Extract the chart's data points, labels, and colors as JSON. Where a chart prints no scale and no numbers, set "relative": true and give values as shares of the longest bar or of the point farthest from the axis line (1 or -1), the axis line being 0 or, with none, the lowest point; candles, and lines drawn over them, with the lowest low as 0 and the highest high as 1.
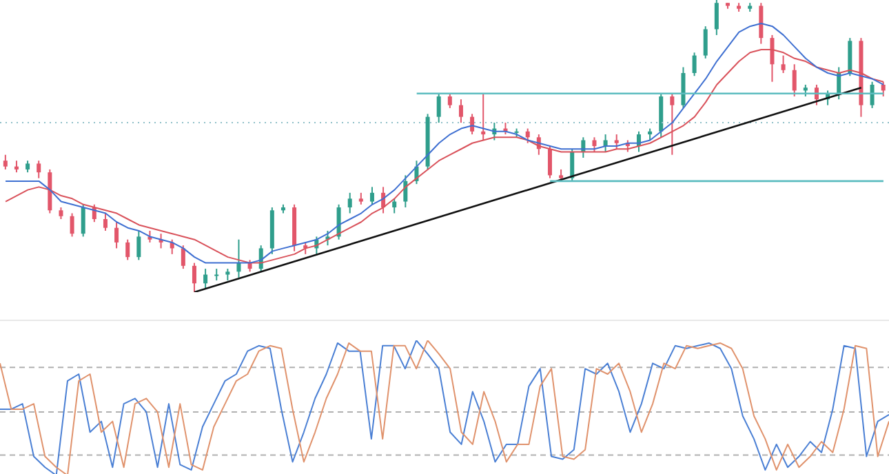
{
  "chart_data": [
    {
      "type": "candlestick",
      "relative": true,
      "tick_labels": false,
      "categories": [
        null,
        null,
        null,
        null,
        null,
        null,
        null,
        null,
        null,
        null,
        null,
        null,
        null,
        null,
        null,
        null,
        null,
        null,
        null,
        null,
        null,
        null,
        null,
        null,
        null,
        null,
        null,
        null,
        null,
        null,
        null,
        null,
        null,
        null,
        null,
        null,
        null,
        null,
        null,
        null,
        null,
        null,
        null,
        null,
        null,
        null,
        null,
        null,
        null,
        null,
        null,
        null,
        null,
        null,
        null,
        null,
        null,
        null,
        null,
        null,
        null,
        null,
        null,
        null,
        null,
        null,
        null,
        null,
        null,
        null,
        null,
        null,
        null,
        null,
        null,
        null,
        null,
        null,
        null,
        null
      ],
      "ohlc": [
        [
          0.45,
          0.47,
          0.42,
          0.43
        ],
        [
          0.43,
          0.45,
          0.41,
          0.42
        ],
        [
          0.42,
          0.45,
          0.41,
          0.44
        ],
        [
          0.44,
          0.45,
          0.39,
          0.41
        ],
        [
          0.41,
          0.42,
          0.27,
          0.28
        ],
        [
          0.28,
          0.29,
          0.25,
          0.26
        ],
        [
          0.26,
          0.27,
          0.19,
          0.2
        ],
        [
          0.2,
          0.3,
          0.19,
          0.29
        ],
        [
          0.29,
          0.3,
          0.24,
          0.25
        ],
        [
          0.25,
          0.27,
          0.21,
          0.22
        ],
        [
          0.22,
          0.24,
          0.15,
          0.17
        ],
        [
          0.17,
          0.18,
          0.11,
          0.12
        ],
        [
          0.12,
          0.21,
          0.11,
          0.19
        ],
        [
          0.19,
          0.21,
          0.17,
          0.18
        ],
        [
          0.18,
          0.2,
          0.15,
          0.17
        ],
        [
          0.17,
          0.18,
          0.13,
          0.15
        ],
        [
          0.15,
          0.16,
          0.08,
          0.09
        ],
        [
          0.09,
          0.1,
          0,
          0.03
        ],
        [
          0.03,
          0.08,
          0.01,
          0.06
        ],
        [
          0.06,
          0.08,
          0.04,
          0.06
        ],
        [
          0.06,
          0.08,
          0.04,
          0.07
        ],
        [
          0.07,
          0.18,
          0.05,
          0.1
        ],
        [
          0.1,
          0.11,
          0.07,
          0.08
        ],
        [
          0.08,
          0.16,
          0.07,
          0.15
        ],
        [
          0.15,
          0.29,
          0.13,
          0.28
        ],
        [
          0.28,
          0.3,
          0.27,
          0.29
        ],
        [
          0.29,
          0.3,
          0.14,
          0.16
        ],
        [
          0.16,
          0.17,
          0.13,
          0.15
        ],
        [
          0.15,
          0.19,
          0.13,
          0.18
        ],
        [
          0.18,
          0.21,
          0.16,
          0.19
        ],
        [
          0.19,
          0.3,
          0.18,
          0.29
        ],
        [
          0.29,
          0.34,
          0.27,
          0.32
        ],
        [
          0.32,
          0.34,
          0.3,
          0.31
        ],
        [
          0.31,
          0.36,
          0.3,
          0.34
        ],
        [
          0.34,
          0.36,
          0.27,
          0.29
        ],
        [
          0.29,
          0.32,
          0.27,
          0.31
        ],
        [
          0.31,
          0.4,
          0.29,
          0.38
        ],
        [
          0.38,
          0.45,
          0.37,
          0.43
        ],
        [
          0.43,
          0.61,
          0.42,
          0.6
        ],
        [
          0.6,
          0.68,
          0.58,
          0.67
        ],
        [
          0.67,
          0.68,
          0.63,
          0.64
        ],
        [
          0.64,
          0.66,
          0.58,
          0.6
        ],
        [
          0.6,
          0.61,
          0.54,
          0.55
        ],
        [
          0.55,
          0.68,
          0.52,
          0.54
        ],
        [
          0.54,
          0.58,
          0.52,
          0.56
        ],
        [
          0.56,
          0.58,
          0.54,
          0.55
        ],
        [
          0.55,
          0.56,
          0.53,
          0.55
        ],
        [
          0.55,
          0.56,
          0.51,
          0.53
        ],
        [
          0.53,
          0.54,
          0.47,
          0.49
        ],
        [
          0.49,
          0.5,
          0.39,
          0.4
        ],
        [
          0.4,
          0.42,
          0.38,
          0.39
        ],
        [
          0.39,
          0.49,
          0.38,
          0.48
        ],
        [
          0.48,
          0.53,
          0.46,
          0.52
        ],
        [
          0.52,
          0.53,
          0.48,
          0.5
        ],
        [
          0.5,
          0.54,
          0.48,
          0.52
        ],
        [
          0.52,
          0.54,
          0.49,
          0.51
        ],
        [
          0.51,
          0.52,
          0.48,
          0.5
        ],
        [
          0.5,
          0.55,
          0.48,
          0.54
        ],
        [
          0.54,
          0.56,
          0.52,
          0.55
        ],
        [
          0.55,
          0.68,
          0.53,
          0.67
        ],
        [
          0.67,
          0.68,
          0.47,
          0.64
        ],
        [
          0.64,
          0.77,
          0.63,
          0.75
        ],
        [
          0.75,
          0.82,
          0.74,
          0.81
        ],
        [
          0.81,
          0.91,
          0.8,
          0.9
        ],
        [
          0.9,
          1,
          0.88,
          0.99
        ],
        [
          0.99,
          0.99,
          0.97,
          0.98
        ],
        [
          0.98,
          0.99,
          0.96,
          0.97
        ],
        [
          0.97,
          0.99,
          0.96,
          0.98
        ],
        [
          0.98,
          0.99,
          0.85,
          0.87
        ],
        [
          0.87,
          0.88,
          0.72,
          0.78
        ],
        [
          0.78,
          0.81,
          0.75,
          0.76
        ],
        [
          0.76,
          0.78,
          0.67,
          0.69
        ],
        [
          0.69,
          0.71,
          0.67,
          0.7
        ],
        [
          0.7,
          0.71,
          0.64,
          0.66
        ],
        [
          0.66,
          0.69,
          0.64,
          0.68
        ],
        [
          0.68,
          0.77,
          0.66,
          0.75
        ],
        [
          0.75,
          0.87,
          0.74,
          0.86
        ],
        [
          0.86,
          0.87,
          0.6,
          0.64
        ],
        [
          0.64,
          0.72,
          0.63,
          0.71
        ],
        [
          0.71,
          0.72,
          0.67,
          0.69
        ]
      ],
      "colors": [
        "#e2566a",
        "#e2566a",
        "#2f9e8c",
        "#e2566a",
        "#e2566a",
        "#e2566a",
        "#e2566a",
        "#2f9e8c",
        "#e2566a",
        "#e2566a",
        "#e2566a",
        "#e2566a",
        "#2f9e8c",
        "#e2566a",
        "#e2566a",
        "#e2566a",
        "#e2566a",
        "#e2566a",
        "#2f9e8c",
        "#2f9e8c",
        "#2f9e8c",
        "#2f9e8c",
        "#e2566a",
        "#2f9e8c",
        "#2f9e8c",
        "#2f9e8c",
        "#e2566a",
        "#e2566a",
        "#2f9e8c",
        "#2f9e8c",
        "#2f9e8c",
        "#2f9e8c",
        "#e2566a",
        "#2f9e8c",
        "#e2566a",
        "#2f9e8c",
        "#2f9e8c",
        "#2f9e8c",
        "#2f9e8c",
        "#2f9e8c",
        "#e2566a",
        "#e2566a",
        "#e2566a",
        "#e2566a",
        "#2f9e8c",
        "#e2566a",
        "#2f9e8c",
        "#e2566a",
        "#e2566a",
        "#e2566a",
        "#e2566a",
        "#2f9e8c",
        "#2f9e8c",
        "#e2566a",
        "#2f9e8c",
        "#e2566a",
        "#e2566a",
        "#2f9e8c",
        "#2f9e8c",
        "#2f9e8c",
        "#e2566a",
        "#2f9e8c",
        "#2f9e8c",
        "#2f9e8c",
        "#2f9e8c",
        "#e2566a",
        "#e2566a",
        "#2f9e8c",
        "#e2566a",
        "#e2566a",
        "#e2566a",
        "#e2566a",
        "#2f9e8c",
        "#e2566a",
        "#2f9e8c",
        "#2f9e8c",
        "#2f9e8c",
        "#e2566a",
        "#2f9e8c",
        "#e2566a"
      ],
      "series": [
        {
          "type": "line",
          "color": "#d9515a",
          "values": [
            0.31,
            0.33,
            0.35,
            0.36,
            0.35,
            0.33,
            0.32,
            0.3,
            0.29,
            0.28,
            0.27,
            0.25,
            0.23,
            0.22,
            0.21,
            0.2,
            0.19,
            0.18,
            0.16,
            0.14,
            0.12,
            0.11,
            0.1,
            0.1,
            0.11,
            0.12,
            0.13,
            0.15,
            0.16,
            0.18,
            0.2,
            0.22,
            0.24,
            0.27,
            0.29,
            0.32,
            0.36,
            0.39,
            0.42,
            0.45,
            0.47,
            0.49,
            0.51,
            0.52,
            0.53,
            0.53,
            0.53,
            0.52,
            0.5,
            0.49,
            0.48,
            0.48,
            0.48,
            0.48,
            0.48,
            0.49,
            0.49,
            0.5,
            0.51,
            0.53,
            0.55,
            0.57,
            0.6,
            0.65,
            0.71,
            0.75,
            0.79,
            0.82,
            0.83,
            0.83,
            0.82,
            0.8,
            0.79,
            0.77,
            0.76,
            0.75,
            0.76,
            0.75,
            0.73,
            0.72
          ]
        },
        {
          "type": "line",
          "color": "#3e6fd1",
          "values": [
            0.38,
            0.38,
            0.38,
            0.38,
            0.35,
            0.31,
            0.3,
            0.29,
            0.28,
            0.27,
            0.24,
            0.22,
            0.21,
            0.19,
            0.18,
            0.17,
            0.15,
            0.12,
            0.1,
            0.1,
            0.1,
            0.1,
            0.1,
            0.11,
            0.14,
            0.15,
            0.16,
            0.17,
            0.18,
            0.2,
            0.23,
            0.25,
            0.27,
            0.3,
            0.32,
            0.35,
            0.39,
            0.43,
            0.47,
            0.51,
            0.54,
            0.56,
            0.57,
            0.56,
            0.55,
            0.55,
            0.54,
            0.52,
            0.51,
            0.5,
            0.49,
            0.49,
            0.49,
            0.49,
            0.5,
            0.5,
            0.51,
            0.51,
            0.52,
            0.55,
            0.58,
            0.63,
            0.68,
            0.73,
            0.79,
            0.84,
            0.89,
            0.91,
            0.92,
            0.91,
            0.88,
            0.84,
            0.8,
            0.77,
            0.75,
            0.74,
            0.75,
            0.74,
            0.73,
            0.71
          ]
        },
        {
          "type": "line",
          "color": "#111111",
          "values": [
            null,
            null,
            null,
            null,
            null,
            null,
            null,
            null,
            null,
            null,
            null,
            null,
            null,
            null,
            null,
            null,
            null,
            0,
            null,
            null,
            null,
            null,
            null,
            null,
            null,
            null,
            null,
            null,
            null,
            null,
            null,
            null,
            null,
            null,
            null,
            null,
            null,
            null,
            null,
            null,
            null,
            null,
            null,
            null,
            null,
            null,
            null,
            null,
            null,
            null,
            null,
            null,
            null,
            null,
            null,
            null,
            null,
            null,
            null,
            null,
            null,
            null,
            null,
            null,
            null,
            null,
            null,
            null,
            null,
            null,
            null,
            null,
            null,
            null,
            null,
            null,
            null,
            0.7,
            null,
            null
          ]
        },
        {
          "type": "line",
          "color": "#5cbcc0",
          "values": [
            null,
            null,
            null,
            null,
            null,
            null,
            null,
            null,
            null,
            null,
            null,
            null,
            null,
            null,
            null,
            null,
            null,
            null,
            null,
            null,
            null,
            null,
            null,
            null,
            null,
            null,
            null,
            null,
            null,
            null,
            null,
            null,
            null,
            null,
            null,
            null,
            null,
            0.68,
            0.68,
            0.68,
            0.68,
            0.68,
            0.68,
            0.68,
            0.68,
            0.68,
            0.68,
            0.68,
            0.68,
            0.68,
            0.68,
            0.68,
            0.68,
            0.68,
            0.68,
            0.68,
            0.68,
            0.68,
            0.68,
            0.68,
            0.68,
            0.68,
            0.68,
            0.68,
            0.68,
            0.68,
            0.68,
            0.68,
            0.68,
            0.68,
            0.68,
            0.68,
            0.68,
            0.68,
            0.68,
            0.68,
            0.68,
            0.68,
            0.68,
            0.68
          ]
        },
        {
          "type": "line",
          "color": "#5cbcc0",
          "values": [
            null,
            null,
            null,
            null,
            null,
            null,
            null,
            null,
            null,
            null,
            null,
            null,
            null,
            null,
            null,
            null,
            null,
            null,
            null,
            null,
            null,
            null,
            null,
            null,
            null,
            null,
            null,
            null,
            null,
            null,
            null,
            null,
            null,
            null,
            null,
            null,
            null,
            null,
            null,
            null,
            null,
            null,
            null,
            null,
            null,
            null,
            null,
            null,
            null,
            0.38,
            0.38,
            0.38,
            0.38,
            0.38,
            0.38,
            0.38,
            0.38,
            0.38,
            0.38,
            0.38,
            0.38,
            0.38,
            0.38,
            0.38,
            0.38,
            0.38,
            0.38,
            0.38,
            0.38,
            0.38,
            0.38,
            0.38,
            0.38,
            0.38,
            0.38,
            0.38,
            0.38,
            0.38,
            0.38,
            0.38
          ]
        }
      ],
      "ref_lines": [
        {
          "axis": "y",
          "value": 0.58,
          "color": "#8fbfc8",
          "line_style": "dotted"
        }
      ]
    },
    {
      "type": "line",
      "relative": true,
      "tick_labels": false,
      "categories": [
        null,
        null,
        null,
        null,
        null,
        null,
        null,
        null,
        null,
        null,
        null,
        null,
        null,
        null,
        null,
        null,
        null,
        null,
        null,
        null,
        null,
        null,
        null,
        null,
        null,
        null,
        null,
        null,
        null,
        null,
        null,
        null,
        null,
        null,
        null,
        null,
        null,
        null,
        null,
        null,
        null,
        null,
        null,
        null,
        null,
        null,
        null,
        null,
        null,
        null,
        null,
        null,
        null,
        null,
        null,
        null,
        null,
        null,
        null,
        null,
        null,
        null,
        null,
        null,
        null,
        null,
        null,
        null,
        null,
        null,
        null,
        null,
        null,
        null,
        null,
        null,
        null,
        null,
        null,
        null
      ],
      "series": [
        {
          "color": "#4a7fd4",
          "values": [
            0.49,
            0.49,
            0.53,
            0.14,
            0.06,
            0,
            0.7,
            0.75,
            0.32,
            0.4,
            0.06,
            0.53,
            0.57,
            0.47,
            0.06,
            0.53,
            0.08,
            0.04,
            0.36,
            0.53,
            0.7,
            0.75,
            0.92,
            0.96,
            0.94,
            0.49,
            0.1,
            0.32,
            0.57,
            0.75,
            0.98,
            0.92,
            0.92,
            0.27,
            0.96,
            0.96,
            0.79,
            1,
            0.9,
            0.79,
            0.32,
            0.23,
            0.62,
            0.4,
            0.1,
            0.23,
            0.23,
            0.66,
            0.79,
            0.14,
            0.12,
            0.19,
            0.79,
            0.75,
            0.83,
            0.62,
            0.32,
            0.53,
            0.83,
            0.79,
            0.96,
            0.94,
            0.96,
            0.98,
            0.94,
            0.79,
            0.44,
            0.27,
            0.04,
            0.23,
            0.06,
            0.14,
            0.25,
            0.17,
            0.49,
            0.96,
            0.94,
            0.14,
            0.4,
            0.45
          ]
        },
        {
          "color": "#e0926c",
          "values": [
            0.83,
            0.49,
            0.49,
            0.53,
            0.14,
            0.06,
            0,
            0.7,
            0.75,
            0.32,
            0.4,
            0.06,
            0.53,
            0.57,
            0.47,
            0.06,
            0.53,
            0.08,
            0.04,
            0.36,
            0.53,
            0.7,
            0.75,
            0.92,
            0.96,
            0.94,
            0.49,
            0.1,
            0.32,
            0.57,
            0.75,
            0.98,
            0.92,
            0.92,
            0.27,
            0.96,
            0.96,
            0.79,
            1,
            0.9,
            0.79,
            0.32,
            0.23,
            0.62,
            0.4,
            0.1,
            0.23,
            0.23,
            0.66,
            0.79,
            0.14,
            0.12,
            0.19,
            0.79,
            0.75,
            0.83,
            0.62,
            0.32,
            0.53,
            0.83,
            0.79,
            0.96,
            0.94,
            0.96,
            0.98,
            0.94,
            0.79,
            0.44,
            0.27,
            0.04,
            0.23,
            0.06,
            0.14,
            0.25,
            0.17,
            0.49,
            0.96,
            0.94,
            0.14,
            0.4
          ]
        }
      ],
      "ref_lines": [
        {
          "axis": "y",
          "value": 0.8,
          "color": "#b0b0b0",
          "line_style": "dashed"
        },
        {
          "axis": "y",
          "value": 0.47,
          "color": "#b0b0b0",
          "line_style": "dashed"
        },
        {
          "axis": "y",
          "value": 0.15,
          "color": "#b0b0b0",
          "line_style": "dashed"
        }
      ]
    }
  ]
}
